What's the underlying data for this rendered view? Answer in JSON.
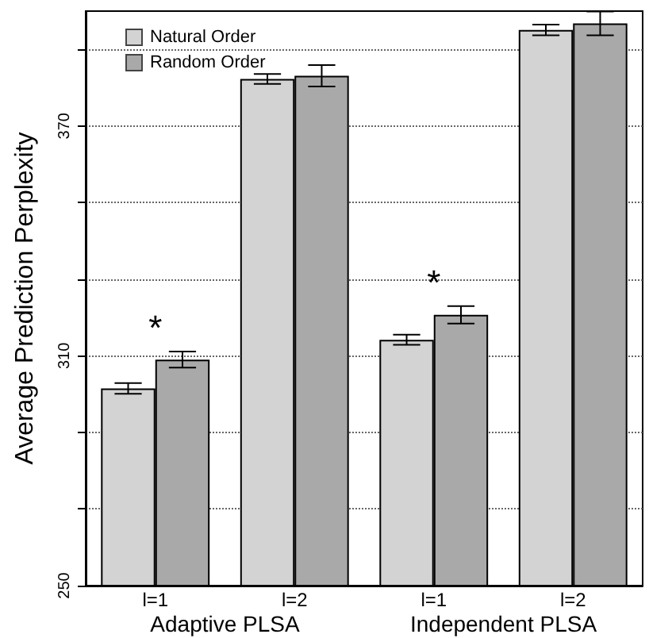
{
  "chart_data": {
    "type": "bar",
    "ylabel": "Average Prediction Perplexity",
    "categories": [
      "l=1",
      "l=2",
      "l=1",
      "l=2"
    ],
    "series": [
      {
        "name": "Natural Order",
        "color": "#d3d3d3",
        "values": [
          301.5,
          382.3,
          314.2,
          395.1
        ],
        "errors": [
          1.4,
          1.3,
          1.3,
          1.4
        ]
      },
      {
        "name": "Random Order",
        "color": "#a9a9a9",
        "values": [
          309.0,
          383.1,
          320.7,
          396.8
        ],
        "errors": [
          2.1,
          2.8,
          2.3,
          3.1
        ]
      }
    ],
    "ylim": [
      250,
      400
    ],
    "yticks": [
      250,
      {
        "value": 270,
        "label": null
      },
      {
        "value": 290,
        "label": null
      },
      310,
      {
        "value": 330,
        "label": null
      },
      {
        "value": 350,
        "label": null
      },
      370,
      {
        "value": 390,
        "label": null
      }
    ],
    "grid": "y",
    "legend": "top left",
    "annotations": [
      "*",
      "*",
      "Adaptive PLSA",
      "Independent PLSA"
    ]
  }
}
